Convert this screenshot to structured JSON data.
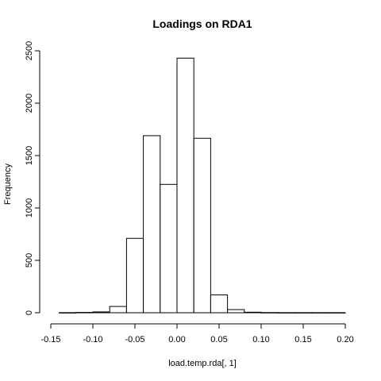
{
  "chart_data": {
    "type": "bar",
    "title": "Loadings on RDA1",
    "xlabel": "load.temp.rda[, 1]",
    "ylabel": "Frequency",
    "bin_width": 0.02,
    "bins": [
      {
        "start": -0.14,
        "end": -0.12,
        "count": 1
      },
      {
        "start": -0.12,
        "end": -0.1,
        "count": 3
      },
      {
        "start": -0.1,
        "end": -0.08,
        "count": 8
      },
      {
        "start": -0.08,
        "end": -0.06,
        "count": 60
      },
      {
        "start": -0.06,
        "end": -0.04,
        "count": 710
      },
      {
        "start": -0.04,
        "end": -0.02,
        "count": 1690
      },
      {
        "start": -0.02,
        "end": 0.0,
        "count": 1225
      },
      {
        "start": 0.0,
        "end": 0.02,
        "count": 2430
      },
      {
        "start": 0.02,
        "end": 0.04,
        "count": 1665
      },
      {
        "start": 0.04,
        "end": 0.06,
        "count": 170
      },
      {
        "start": 0.06,
        "end": 0.08,
        "count": 30
      },
      {
        "start": 0.08,
        "end": 0.1,
        "count": 5
      },
      {
        "start": 0.1,
        "end": 0.12,
        "count": 2
      },
      {
        "start": 0.12,
        "end": 0.14,
        "count": 1
      },
      {
        "start": 0.14,
        "end": 0.16,
        "count": 1
      },
      {
        "start": 0.16,
        "end": 0.18,
        "count": 1
      },
      {
        "start": 0.18,
        "end": 0.2,
        "count": 1
      }
    ],
    "xlim": [
      -0.15,
      0.2
    ],
    "ylim": [
      0,
      2500
    ],
    "x_ticks": [
      -0.15,
      -0.1,
      -0.05,
      0.0,
      0.05,
      0.1,
      0.15,
      0.2
    ],
    "x_tick_labels": [
      "-0.15",
      "-0.10",
      "-0.05",
      "0.00",
      "0.05",
      "0.10",
      "0.15",
      "0.20"
    ],
    "y_ticks": [
      0,
      500,
      1000,
      1500,
      2000,
      2500
    ],
    "y_tick_labels": [
      "0",
      "500",
      "1000",
      "1500",
      "2000",
      "2500"
    ],
    "grid": false,
    "legend": "none"
  }
}
